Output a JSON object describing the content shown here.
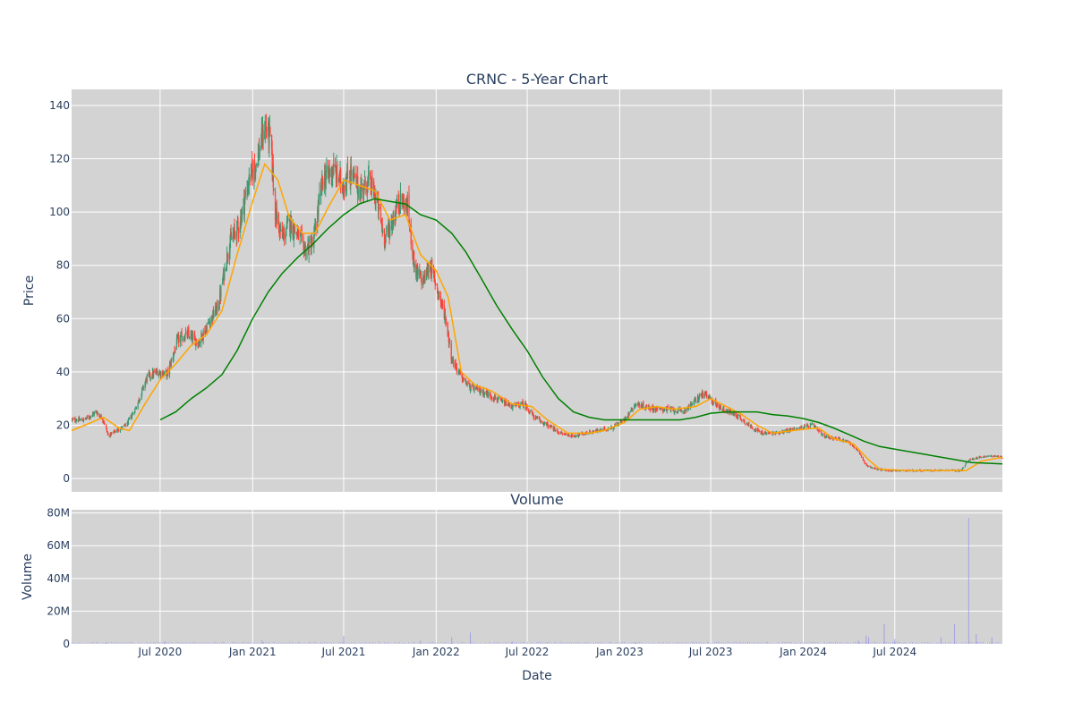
{
  "chart_data": [
    {
      "type": "candlestick",
      "title": "CRNC - 5-Year Chart",
      "ylabel": "Price",
      "xlabel": "",
      "ylim": [
        -5,
        146
      ],
      "xlim": [
        "2020-01-07",
        "2025-01-31"
      ],
      "yticks": [
        "0",
        "20",
        "40",
        "60",
        "80",
        "100",
        "120",
        "140"
      ],
      "grid": true,
      "colors": {
        "up": "#3d9970",
        "down": "#ff4136",
        "ma_short": "#ffa500",
        "ma_long": "#008000",
        "plot_bg": "#d3d3d3",
        "grid": "#ffffff"
      },
      "series": [
        {
          "kind": "ohlc",
          "approximate_close": [
            [
              "2020-01-10",
              22
            ],
            [
              "2020-02-01",
              22
            ],
            [
              "2020-02-25",
              25
            ],
            [
              "2020-03-10",
              22
            ],
            [
              "2020-03-20",
              16
            ],
            [
              "2020-04-05",
              18
            ],
            [
              "2020-04-25",
              20
            ],
            [
              "2020-05-15",
              27
            ],
            [
              "2020-06-05",
              38
            ],
            [
              "2020-06-25",
              40
            ],
            [
              "2020-07-15",
              39
            ],
            [
              "2020-08-05",
              52
            ],
            [
              "2020-08-25",
              54
            ],
            [
              "2020-09-15",
              51
            ],
            [
              "2020-10-05",
              58
            ],
            [
              "2020-10-25",
              65
            ],
            [
              "2020-11-15",
              88
            ],
            [
              "2020-12-05",
              95
            ],
            [
              "2020-12-25",
              112
            ],
            [
              "2021-01-10",
              120
            ],
            [
              "2021-01-25",
              132
            ],
            [
              "2021-02-05",
              128
            ],
            [
              "2021-02-15",
              100
            ],
            [
              "2021-03-01",
              90
            ],
            [
              "2021-03-15",
              96
            ],
            [
              "2021-03-30",
              92
            ],
            [
              "2021-04-15",
              86
            ],
            [
              "2021-05-01",
              88
            ],
            [
              "2021-05-20",
              112
            ],
            [
              "2021-06-10",
              116
            ],
            [
              "2021-06-30",
              110
            ],
            [
              "2021-07-15",
              115
            ],
            [
              "2021-08-01",
              108
            ],
            [
              "2021-08-20",
              112
            ],
            [
              "2021-09-05",
              104
            ],
            [
              "2021-09-20",
              90
            ],
            [
              "2021-10-05",
              96
            ],
            [
              "2021-10-20",
              105
            ],
            [
              "2021-11-05",
              102
            ],
            [
              "2021-11-20",
              78
            ],
            [
              "2021-12-05",
              74
            ],
            [
              "2021-12-20",
              80
            ],
            [
              "2022-01-05",
              70
            ],
            [
              "2022-01-20",
              60
            ],
            [
              "2022-02-01",
              45
            ],
            [
              "2022-02-20",
              38
            ],
            [
              "2022-03-10",
              34
            ],
            [
              "2022-03-30",
              33
            ],
            [
              "2022-04-20",
              31
            ],
            [
              "2022-05-10",
              29
            ],
            [
              "2022-06-01",
              27
            ],
            [
              "2022-06-25",
              28
            ],
            [
              "2022-07-15",
              23
            ],
            [
              "2022-08-10",
              20
            ],
            [
              "2022-09-05",
              17
            ],
            [
              "2022-09-30",
              16
            ],
            [
              "2022-10-25",
              17
            ],
            [
              "2022-11-20",
              18
            ],
            [
              "2022-12-15",
              19
            ],
            [
              "2023-01-10",
              22
            ],
            [
              "2023-02-01",
              28
            ],
            [
              "2023-02-20",
              27
            ],
            [
              "2023-03-15",
              26
            ],
            [
              "2023-04-10",
              26
            ],
            [
              "2023-05-05",
              25
            ],
            [
              "2023-05-25",
              28
            ],
            [
              "2023-06-15",
              32
            ],
            [
              "2023-07-05",
              29
            ],
            [
              "2023-07-25",
              26
            ],
            [
              "2023-08-20",
              24
            ],
            [
              "2023-09-15",
              20
            ],
            [
              "2023-10-10",
              17
            ],
            [
              "2023-11-05",
              17
            ],
            [
              "2023-12-01",
              18
            ],
            [
              "2023-12-25",
              19
            ],
            [
              "2024-01-20",
              20
            ],
            [
              "2024-02-10",
              16
            ],
            [
              "2024-03-05",
              15
            ],
            [
              "2024-03-30",
              14
            ],
            [
              "2024-04-20",
              10
            ],
            [
              "2024-05-05",
              5
            ],
            [
              "2024-05-25",
              3.5
            ],
            [
              "2024-06-20",
              3
            ],
            [
              "2024-07-20",
              3
            ],
            [
              "2024-08-20",
              3
            ],
            [
              "2024-09-20",
              3
            ],
            [
              "2024-10-20",
              3
            ],
            [
              "2024-11-10",
              3
            ],
            [
              "2024-11-25",
              7
            ],
            [
              "2024-12-15",
              8
            ],
            [
              "2025-01-10",
              8.5
            ],
            [
              "2025-01-31",
              8
            ]
          ]
        },
        {
          "kind": "ma_short",
          "points": [
            [
              "2020-01-07",
              18
            ],
            [
              "2020-02-15",
              21
            ],
            [
              "2020-03-10",
              23
            ],
            [
              "2020-04-10",
              19
            ],
            [
              "2020-05-01",
              18
            ],
            [
              "2020-06-01",
              28
            ],
            [
              "2020-07-01",
              37
            ],
            [
              "2020-08-01",
              43
            ],
            [
              "2020-09-01",
              50
            ],
            [
              "2020-10-01",
              54
            ],
            [
              "2020-11-01",
              63
            ],
            [
              "2020-12-01",
              84
            ],
            [
              "2021-01-01",
              104
            ],
            [
              "2021-01-25",
              118
            ],
            [
              "2021-02-20",
              112
            ],
            [
              "2021-03-15",
              98
            ],
            [
              "2021-04-10",
              92
            ],
            [
              "2021-05-05",
              92
            ],
            [
              "2021-06-01",
              102
            ],
            [
              "2021-07-01",
              112
            ],
            [
              "2021-08-01",
              110
            ],
            [
              "2021-09-01",
              108
            ],
            [
              "2021-10-01",
              97
            ],
            [
              "2021-11-01",
              99
            ],
            [
              "2021-12-01",
              84
            ],
            [
              "2022-01-01",
              78
            ],
            [
              "2022-01-25",
              68
            ],
            [
              "2022-02-20",
              40
            ],
            [
              "2022-03-20",
              35
            ],
            [
              "2022-04-20",
              33
            ],
            [
              "2022-06-01",
              28
            ],
            [
              "2022-07-10",
              27
            ],
            [
              "2022-08-10",
              22
            ],
            [
              "2022-09-20",
              17
            ],
            [
              "2022-11-01",
              17
            ],
            [
              "2022-12-01",
              18
            ],
            [
              "2023-01-10",
              21
            ],
            [
              "2023-02-10",
              26
            ],
            [
              "2023-03-15",
              27
            ],
            [
              "2023-04-20",
              26
            ],
            [
              "2023-06-01",
              27
            ],
            [
              "2023-07-01",
              30
            ],
            [
              "2023-08-01",
              27
            ],
            [
              "2023-09-01",
              24
            ],
            [
              "2023-10-01",
              20
            ],
            [
              "2023-11-01",
              17
            ],
            [
              "2024-01-01",
              18.5
            ],
            [
              "2024-02-01",
              19
            ],
            [
              "2024-03-01",
              15
            ],
            [
              "2024-04-10",
              13
            ],
            [
              "2024-05-10",
              7
            ],
            [
              "2024-06-01",
              3.5
            ],
            [
              "2024-08-01",
              3
            ],
            [
              "2024-10-01",
              3
            ],
            [
              "2024-11-20",
              3
            ],
            [
              "2024-12-20",
              6.5
            ],
            [
              "2025-01-31",
              8
            ]
          ]
        },
        {
          "kind": "ma_long",
          "points": [
            [
              "2020-07-01",
              22
            ],
            [
              "2020-08-01",
              25
            ],
            [
              "2020-09-01",
              30
            ],
            [
              "2020-10-01",
              34
            ],
            [
              "2020-11-01",
              39
            ],
            [
              "2020-12-01",
              48
            ],
            [
              "2021-01-01",
              60
            ],
            [
              "2021-02-01",
              70
            ],
            [
              "2021-03-01",
              77
            ],
            [
              "2021-04-01",
              83
            ],
            [
              "2021-05-01",
              88
            ],
            [
              "2021-06-01",
              94
            ],
            [
              "2021-07-01",
              99
            ],
            [
              "2021-08-01",
              103
            ],
            [
              "2021-09-01",
              105
            ],
            [
              "2021-10-01",
              104
            ],
            [
              "2021-11-01",
              103
            ],
            [
              "2021-12-01",
              99
            ],
            [
              "2022-01-01",
              97
            ],
            [
              "2022-02-01",
              92
            ],
            [
              "2022-03-01",
              85
            ],
            [
              "2022-04-01",
              75
            ],
            [
              "2022-05-01",
              65
            ],
            [
              "2022-06-01",
              56
            ],
            [
              "2022-07-01",
              48
            ],
            [
              "2022-08-01",
              38
            ],
            [
              "2022-09-01",
              30
            ],
            [
              "2022-10-01",
              25
            ],
            [
              "2022-11-01",
              23
            ],
            [
              "2022-12-01",
              22
            ],
            [
              "2023-01-01",
              22
            ],
            [
              "2023-02-01",
              22
            ],
            [
              "2023-03-01",
              22
            ],
            [
              "2023-04-01",
              22
            ],
            [
              "2023-05-01",
              22
            ],
            [
              "2023-06-01",
              23
            ],
            [
              "2023-07-01",
              24.5
            ],
            [
              "2023-08-01",
              25
            ],
            [
              "2023-09-01",
              25
            ],
            [
              "2023-10-01",
              25
            ],
            [
              "2023-11-01",
              24
            ],
            [
              "2023-12-01",
              23.5
            ],
            [
              "2024-01-01",
              22.5
            ],
            [
              "2024-02-01",
              21
            ],
            [
              "2024-03-01",
              19
            ],
            [
              "2024-04-01",
              16.5
            ],
            [
              "2024-05-01",
              14
            ],
            [
              "2024-06-01",
              12
            ],
            [
              "2024-07-01",
              11
            ],
            [
              "2024-08-01",
              10
            ],
            [
              "2024-09-01",
              9
            ],
            [
              "2024-10-01",
              8
            ],
            [
              "2024-11-01",
              7
            ],
            [
              "2024-12-01",
              6
            ],
            [
              "2025-01-31",
              5.5
            ]
          ]
        }
      ]
    },
    {
      "type": "bar",
      "title": "Volume",
      "ylabel": "Volume",
      "xlabel": "Date",
      "ylim": [
        0,
        82000000
      ],
      "yticks": [
        "0",
        "20M",
        "40M",
        "60M",
        "80M"
      ],
      "xticks": [
        "Jul 2020",
        "Jan 2021",
        "Jul 2021",
        "Jan 2022",
        "Jul 2022",
        "Jan 2023",
        "Jul 2023",
        "Jan 2024",
        "Jul 2024"
      ],
      "grid": true,
      "colors": {
        "bar": "#8c8ce6",
        "plot_bg": "#d3d3d3",
        "grid": "#ffffff"
      },
      "approximate_values": [
        [
          "2020-03-15",
          1000000
        ],
        [
          "2020-07-10",
          1500000
        ],
        [
          "2021-01-20",
          2000000
        ],
        [
          "2021-07-01",
          5000000
        ],
        [
          "2021-12-01",
          2000000
        ],
        [
          "2022-02-01",
          4000000
        ],
        [
          "2022-03-10",
          7000000
        ],
        [
          "2022-06-01",
          1500000
        ],
        [
          "2023-02-01",
          1200000
        ],
        [
          "2024-04-20",
          2000000
        ],
        [
          "2024-05-05",
          5000000
        ],
        [
          "2024-05-10",
          4000000
        ],
        [
          "2024-06-10",
          12000000
        ],
        [
          "2024-07-01",
          3000000
        ],
        [
          "2024-10-01",
          4000000
        ],
        [
          "2024-10-28",
          12000000
        ],
        [
          "2024-11-25",
          77000000
        ],
        [
          "2024-12-10",
          6000000
        ],
        [
          "2025-01-10",
          4000000
        ]
      ]
    }
  ]
}
